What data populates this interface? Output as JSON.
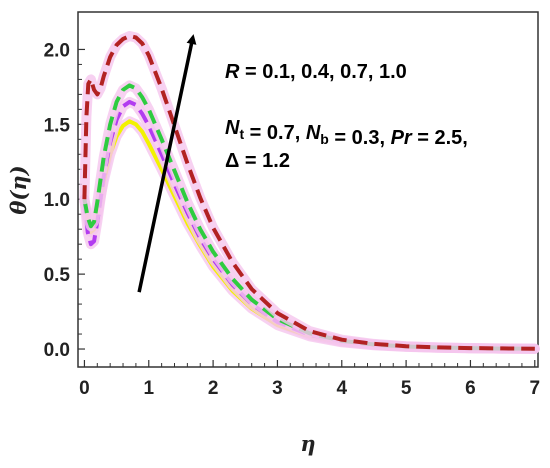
{
  "chart_data": {
    "type": "line",
    "xlabel": "η",
    "ylabel": "θ(η)",
    "xlim": [
      -0.1,
      7.05
    ],
    "ylim": [
      -0.12,
      2.25
    ],
    "xticks": [
      0,
      1,
      2,
      3,
      4,
      5,
      6,
      7
    ],
    "yticks": [
      0.0,
      0.5,
      1.0,
      1.5,
      2.0
    ],
    "ytick_labels": [
      "0.0",
      "0.5",
      "1.0",
      "1.5",
      "2.0"
    ],
    "grid": false,
    "annotation_lines": [
      {
        "parts": [
          {
            "t": "R",
            "style": "it"
          },
          {
            "t": " = 0.1,  0.4,  0.7,  1.0",
            "style": ""
          }
        ]
      },
      {
        "parts": [
          {
            "t": "N",
            "style": "it"
          },
          {
            "t": "t",
            "style": "sub"
          },
          {
            "t": " = 0.7, ",
            "style": ""
          },
          {
            "t": "N",
            "style": "it"
          },
          {
            "t": "b",
            "style": "sub"
          },
          {
            "t": " = 0.3, ",
            "style": ""
          },
          {
            "t": "Pr",
            "style": "it"
          },
          {
            "t": " = 2.5,",
            "style": ""
          }
        ]
      },
      {
        "parts": [
          {
            "t": "Δ = 1.2",
            "style": ""
          }
        ]
      }
    ],
    "arrow": {
      "from": [
        0.85,
        0.38
      ],
      "to": [
        1.68,
        2.07
      ]
    },
    "series": [
      {
        "color": "#f2f200",
        "dash": "solid",
        "x": [
          0,
          0.05,
          0.1,
          0.15,
          0.2,
          0.3,
          0.4,
          0.5,
          0.6,
          0.7,
          0.8,
          0.9,
          1.0,
          1.2,
          1.4,
          1.6,
          1.8,
          2.0,
          2.3,
          2.6,
          3.0,
          3.5,
          4.0,
          4.5,
          5.0,
          5.5,
          6.0,
          6.5,
          7.0
        ],
        "y": [
          1.0,
          0.86,
          0.78,
          0.8,
          0.9,
          1.12,
          1.3,
          1.42,
          1.49,
          1.52,
          1.5,
          1.45,
          1.37,
          1.2,
          1.02,
          0.84,
          0.69,
          0.55,
          0.39,
          0.27,
          0.16,
          0.085,
          0.045,
          0.025,
          0.014,
          0.008,
          0.005,
          0.003,
          0.002
        ]
      },
      {
        "color": "#b23cf0",
        "dash": "dashed",
        "x": [
          0,
          0.05,
          0.1,
          0.15,
          0.2,
          0.3,
          0.4,
          0.5,
          0.6,
          0.7,
          0.8,
          0.9,
          1.0,
          1.2,
          1.4,
          1.6,
          1.8,
          2.0,
          2.3,
          2.6,
          3.0,
          3.5,
          4.0,
          4.5,
          5.0,
          5.5,
          6.0,
          6.5,
          7.0
        ],
        "y": [
          1.0,
          0.78,
          0.7,
          0.72,
          0.85,
          1.15,
          1.38,
          1.53,
          1.62,
          1.65,
          1.63,
          1.57,
          1.49,
          1.3,
          1.1,
          0.91,
          0.74,
          0.6,
          0.43,
          0.3,
          0.18,
          0.095,
          0.05,
          0.028,
          0.016,
          0.009,
          0.005,
          0.003,
          0.002
        ]
      },
      {
        "color": "#2ecc40",
        "dash": "dashed",
        "x": [
          0,
          0.05,
          0.1,
          0.15,
          0.2,
          0.3,
          0.4,
          0.5,
          0.6,
          0.7,
          0.8,
          0.9,
          1.0,
          1.2,
          1.4,
          1.6,
          1.8,
          2.0,
          2.3,
          2.6,
          3.0,
          3.5,
          4.0,
          4.5,
          5.0,
          5.5,
          6.0,
          6.5,
          7.0
        ],
        "y": [
          1.0,
          0.88,
          0.82,
          0.85,
          0.98,
          1.28,
          1.5,
          1.65,
          1.73,
          1.76,
          1.74,
          1.68,
          1.6,
          1.4,
          1.19,
          0.98,
          0.8,
          0.65,
          0.47,
          0.33,
          0.2,
          0.105,
          0.055,
          0.03,
          0.017,
          0.01,
          0.006,
          0.003,
          0.002
        ]
      },
      {
        "color": "#b22222",
        "dash": "dashed",
        "x": [
          0,
          0.03,
          0.06,
          0.1,
          0.15,
          0.2,
          0.25,
          0.3,
          0.4,
          0.5,
          0.6,
          0.7,
          0.8,
          0.9,
          1.0,
          1.2,
          1.4,
          1.6,
          1.8,
          2.0,
          2.3,
          2.6,
          3.0,
          3.5,
          4.0,
          4.5,
          5.0,
          5.5,
          6.0,
          6.5,
          7.0
        ],
        "y": [
          1.0,
          1.55,
          1.77,
          1.8,
          1.73,
          1.7,
          1.74,
          1.82,
          1.95,
          2.03,
          2.07,
          2.09,
          2.08,
          2.04,
          1.96,
          1.74,
          1.49,
          1.24,
          1.01,
          0.81,
          0.58,
          0.4,
          0.24,
          0.12,
          0.062,
          0.034,
          0.019,
          0.011,
          0.006,
          0.004,
          0.002
        ]
      }
    ]
  }
}
